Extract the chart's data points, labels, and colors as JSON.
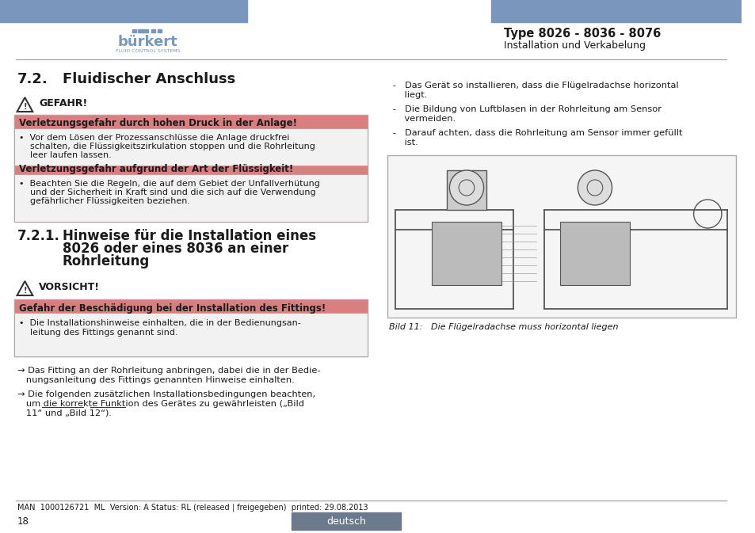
{
  "bg_color": "#ffffff",
  "header_bar_color": "#7a96bc",
  "type_text": "Type 8026 - 8036 - 8076",
  "subtitle_text": "Installation und Verkabelung",
  "section_title": "7.2.",
  "section_title2": "Fluidischer Anschluss",
  "section21_num": "7.2.1.",
  "section21_title_line1": "Hinweise für die Installation eines",
  "section21_title_line2": "8026 oder eines 8036 an einer",
  "section21_title_line3": "Rohrleitung",
  "danger_label": "GEFAHR!",
  "danger_box_color": "#d88080",
  "danger_bg_color": "#f0f0f0",
  "danger_header1": "Verletzungsgefahr durch hohen Druck in der Anlage!",
  "danger_text1_line1": "•  Vor dem Lösen der Prozessanschlüsse die Anlage druckfrei",
  "danger_text1_line2": "    schalten, die Flüssigkeitszirkulation stoppen und die Rohrleitung",
  "danger_text1_line3": "    leer laufen lassen.",
  "danger_header2": "Verletzungsgefahr aufgrund der Art der Flüssigkeit!",
  "danger_text2_line1": "•  Beachten Sie die Regeln, die auf dem Gebiet der Unfallverhütung",
  "danger_text2_line2": "    und der Sicherheit in Kraft sind und die sich auf die Verwendung",
  "danger_text2_line3": "    gefährlicher Flüssigkeiten beziehen.",
  "caution_label": "VORSICHT!",
  "caution_box_color": "#d88080",
  "caution_bg_color": "#f0f0f0",
  "caution_header": "Gefahr der Beschädigung bei der Installation des Fittings!",
  "caution_text_line1": "•  Die Installationshinweise einhalten, die in der Bedienungsan-",
  "caution_text_line2": "    leitung des Fittings genannt sind.",
  "arrow_text1_line1": "→ Das Fitting an der Rohrleitung anbringen, dabei die in der Bedie-",
  "arrow_text1_line2": "   nungsanleitung des Fittings genannten Hinweise einhalten.",
  "arrow_text2_line1": "→ Die folgenden zusätzlichen Installationsbedingungen beachten,",
  "arrow_text2_line2": "   um die korrekte Funktion des Gerätes zu gewährleisten („Bild",
  "arrow_text2_line3": "   11“ und „Bild 12“).",
  "right_bullet1_line1": "-   Das Gerät so installieren, dass die Flügelradachse horizontal",
  "right_bullet1_line2": "    liegt.",
  "right_bullet2_line1": "-   Die Bildung von Luftblasen in der Rohrleitung am Sensor",
  "right_bullet2_line2": "    vermeiden.",
  "right_bullet3_line1": "-   Darauf achten, dass die Rohrleitung am Sensor immer gefüllt",
  "right_bullet3_line2": "    ist.",
  "fig_caption": "Bild 11:   Die Flügelradachse muss horizontal liegen",
  "footer_text": "MAN  1000126721  ML  Version: A Status: RL (released | freigegeben)  printed: 29.08.2013",
  "page_num": "18",
  "deutsch_label": "deutsch",
  "deutsch_box_color": "#6b7b8d",
  "text_color": "#1a1a1a",
  "logo_color": "#7a96bc"
}
